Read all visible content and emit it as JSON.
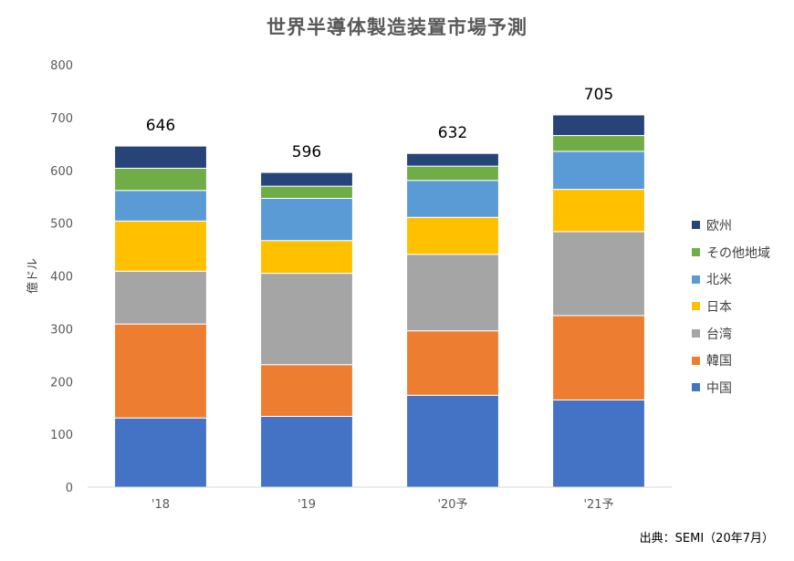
{
  "chart_data": {
    "type": "bar",
    "stacked": true,
    "title": "世界半導体製造装置市場予測",
    "ylabel": "億ドル",
    "xlabel": "",
    "ylim": [
      0,
      800
    ],
    "yticks": [
      "0",
      "100",
      "200",
      "300",
      "400",
      "500",
      "600",
      "700",
      "800"
    ],
    "categories": [
      "'18",
      "'19",
      "'20予",
      "'21予"
    ],
    "totals": [
      "646",
      "596",
      "632",
      "705"
    ],
    "legend_position": "right",
    "grid": false,
    "series": [
      {
        "name": "中国",
        "color": "#4472C4",
        "values": [
          131,
          134,
          174,
          165
        ]
      },
      {
        "name": "韓国",
        "color": "#ED7D31",
        "values": [
          178,
          98,
          122,
          160
        ]
      },
      {
        "name": "台湾",
        "color": "#A5A5A5",
        "values": [
          100,
          173,
          145,
          159
        ]
      },
      {
        "name": "日本",
        "color": "#FFC000",
        "values": [
          95,
          62,
          70,
          80
        ]
      },
      {
        "name": "北米",
        "color": "#5B9BD5",
        "values": [
          58,
          80,
          70,
          72
        ]
      },
      {
        "name": "その他地域",
        "color": "#70AD47",
        "values": [
          42,
          23,
          27,
          30
        ]
      },
      {
        "name": "欧州",
        "color": "#264478",
        "values": [
          42,
          26,
          24,
          39
        ]
      }
    ]
  },
  "source_note": "出典：SEMI（20年7月）"
}
